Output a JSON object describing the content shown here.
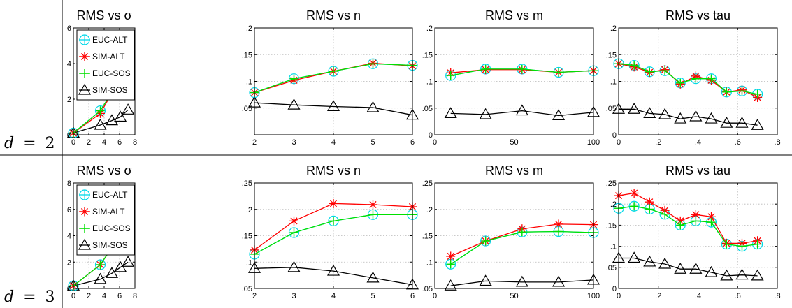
{
  "rows": [
    {
      "label_var": "d",
      "label_eq": "=",
      "label_val": "2"
    },
    {
      "label_var": "d",
      "label_eq": "=",
      "label_val": "3"
    }
  ],
  "colors": {
    "EUC-ALT": "#00d8e8",
    "SIM-ALT": "#ff0000",
    "EUC-SOS": "#00e000",
    "SIM-SOS": "#000000"
  },
  "chart_data": [
    {
      "type": "line",
      "title": "RMS vs σ",
      "row": 0,
      "col": 0,
      "legend": [
        "EUC-ALT",
        "SIM-ALT",
        "EUC-SOS",
        "SIM-SOS"
      ],
      "legend_position": "top-left",
      "grid": true,
      "xlim": [
        0,
        8
      ],
      "ylim": [
        0,
        6
      ],
      "xticks": [
        0,
        2,
        4,
        6,
        8
      ],
      "yticks": [
        0,
        2,
        4,
        6
      ],
      "x": [
        0,
        3.5,
        5,
        6.1,
        7.1
      ],
      "series": [
        {
          "name": "EUC-ALT",
          "marker": "circle-cross",
          "values": [
            0.1,
            1.35,
            2.4,
            3.45,
            4.7
          ]
        },
        {
          "name": "SIM-ALT",
          "marker": "asterisk",
          "values": [
            0.1,
            1.2,
            2.35,
            3.25,
            4.6
          ]
        },
        {
          "name": "EUC-SOS",
          "marker": "plus",
          "values": [
            0.1,
            1.35,
            2.4,
            3.45,
            4.7
          ]
        },
        {
          "name": "SIM-SOS",
          "marker": "triangle",
          "values": [
            0.1,
            0.55,
            0.8,
            1.0,
            1.4
          ]
        }
      ]
    },
    {
      "type": "line",
      "title": "RMS vs n",
      "row": 0,
      "col": 1,
      "grid": true,
      "xlim": [
        2,
        6
      ],
      "ylim": [
        0,
        0.2
      ],
      "xticks": [
        2,
        3,
        4,
        5,
        6
      ],
      "yticks": [
        0.05,
        0.1,
        0.15,
        0.2
      ],
      "x": [
        2,
        3,
        4,
        5,
        6
      ],
      "series": [
        {
          "name": "EUC-ALT",
          "marker": "circle-cross",
          "values": [
            0.079,
            0.105,
            0.119,
            0.133,
            0.13
          ]
        },
        {
          "name": "SIM-ALT",
          "marker": "asterisk",
          "values": [
            0.079,
            0.102,
            0.119,
            0.134,
            0.129
          ]
        },
        {
          "name": "EUC-SOS",
          "marker": "plus",
          "values": [
            0.079,
            0.105,
            0.119,
            0.133,
            0.13
          ]
        },
        {
          "name": "SIM-SOS",
          "marker": "triangle",
          "values": [
            0.06,
            0.056,
            0.053,
            0.051,
            0.037
          ]
        }
      ]
    },
    {
      "type": "line",
      "title": "RMS vs m",
      "row": 0,
      "col": 2,
      "grid": true,
      "xlim": [
        0,
        100
      ],
      "ylim": [
        0,
        0.2
      ],
      "xticks": [
        0,
        50,
        100
      ],
      "yticks": [
        0,
        0.05,
        0.1,
        0.15,
        0.2
      ],
      "x": [
        10,
        32,
        55,
        78,
        100
      ],
      "series": [
        {
          "name": "EUC-ALT",
          "marker": "circle-cross",
          "values": [
            0.111,
            0.123,
            0.123,
            0.117,
            0.12
          ]
        },
        {
          "name": "SIM-ALT",
          "marker": "asterisk",
          "values": [
            0.116,
            0.122,
            0.122,
            0.117,
            0.12
          ]
        },
        {
          "name": "EUC-SOS",
          "marker": "plus",
          "values": [
            0.111,
            0.123,
            0.123,
            0.117,
            0.12
          ]
        },
        {
          "name": "SIM-SOS",
          "marker": "triangle",
          "values": [
            0.04,
            0.038,
            0.045,
            0.036,
            0.042
          ]
        }
      ]
    },
    {
      "type": "line",
      "title": "RMS vs tau",
      "row": 0,
      "col": 3,
      "grid": true,
      "xlim": [
        0,
        0.8
      ],
      "ylim": [
        0,
        0.2
      ],
      "xticks": [
        0,
        0.2,
        0.4,
        0.6,
        0.8
      ],
      "yticks": [
        0,
        0.05,
        0.1,
        0.15,
        0.2
      ],
      "x": [
        0,
        0.078,
        0.156,
        0.233,
        0.311,
        0.389,
        0.467,
        0.544,
        0.622,
        0.7
      ],
      "series": [
        {
          "name": "EUC-ALT",
          "marker": "circle-cross",
          "values": [
            0.133,
            0.13,
            0.118,
            0.12,
            0.097,
            0.105,
            0.105,
            0.08,
            0.082,
            0.076
          ]
        },
        {
          "name": "SIM-ALT",
          "marker": "asterisk",
          "values": [
            0.133,
            0.127,
            0.117,
            0.122,
            0.095,
            0.11,
            0.102,
            0.08,
            0.084,
            0.07
          ]
        },
        {
          "name": "EUC-SOS",
          "marker": "plus",
          "values": [
            0.133,
            0.13,
            0.118,
            0.12,
            0.097,
            0.105,
            0.105,
            0.08,
            0.082,
            0.076
          ]
        },
        {
          "name": "SIM-SOS",
          "marker": "triangle",
          "values": [
            0.048,
            0.048,
            0.04,
            0.038,
            0.03,
            0.034,
            0.03,
            0.022,
            0.022,
            0.018
          ]
        }
      ]
    },
    {
      "type": "line",
      "title": "RMS vs σ",
      "row": 1,
      "col": 0,
      "legend": [
        "EUC-ALT",
        "SIM-ALT",
        "EUC-SOS",
        "SIM-SOS"
      ],
      "legend_position": "top-left",
      "grid": true,
      "xlim": [
        0,
        8
      ],
      "ylim": [
        0,
        8
      ],
      "xticks": [
        0,
        2,
        4,
        6,
        8
      ],
      "yticks": [
        0,
        2,
        4,
        6,
        8
      ],
      "x": [
        0,
        3.5,
        5,
        6.1,
        7.1
      ],
      "series": [
        {
          "name": "EUC-ALT",
          "marker": "circle-cross",
          "values": [
            0.2,
            1.8,
            3.1,
            4.75,
            6.35
          ]
        },
        {
          "name": "SIM-ALT",
          "marker": "asterisk",
          "values": [
            0.2,
            1.8,
            3.1,
            4.85,
            6.65
          ]
        },
        {
          "name": "EUC-SOS",
          "marker": "plus",
          "values": [
            0.2,
            1.8,
            3.1,
            4.75,
            6.35
          ]
        },
        {
          "name": "SIM-SOS",
          "marker": "triangle",
          "values": [
            0.2,
            0.7,
            1.15,
            1.6,
            2.0
          ]
        }
      ]
    },
    {
      "type": "line",
      "title": "RMS vs n",
      "row": 1,
      "col": 1,
      "grid": true,
      "xlim": [
        2,
        6
      ],
      "ylim": [
        0.05,
        0.25
      ],
      "xticks": [
        2,
        3,
        4,
        5,
        6
      ],
      "yticks": [
        0.05,
        0.1,
        0.15,
        0.2,
        0.25
      ],
      "x": [
        2,
        3,
        4,
        5,
        6
      ],
      "series": [
        {
          "name": "EUC-ALT",
          "marker": "circle-cross",
          "values": [
            0.115,
            0.156,
            0.178,
            0.19,
            0.19
          ]
        },
        {
          "name": "SIM-ALT",
          "marker": "asterisk",
          "values": [
            0.123,
            0.178,
            0.211,
            0.209,
            0.205
          ]
        },
        {
          "name": "EUC-SOS",
          "marker": "plus",
          "values": [
            0.115,
            0.156,
            0.178,
            0.19,
            0.19
          ]
        },
        {
          "name": "SIM-SOS",
          "marker": "triangle",
          "values": [
            0.088,
            0.09,
            0.083,
            0.07,
            0.057
          ]
        }
      ]
    },
    {
      "type": "line",
      "title": "RMS vs m",
      "row": 1,
      "col": 2,
      "grid": true,
      "xlim": [
        0,
        100
      ],
      "ylim": [
        0.05,
        0.25
      ],
      "xticks": [
        0,
        50,
        100
      ],
      "yticks": [
        0.05,
        0.1,
        0.15,
        0.2,
        0.25
      ],
      "x": [
        10,
        32,
        55,
        78,
        100
      ],
      "series": [
        {
          "name": "EUC-ALT",
          "marker": "circle-cross",
          "values": [
            0.096,
            0.14,
            0.157,
            0.158,
            0.156
          ]
        },
        {
          "name": "SIM-ALT",
          "marker": "asterisk",
          "values": [
            0.111,
            0.14,
            0.163,
            0.172,
            0.171
          ]
        },
        {
          "name": "EUC-SOS",
          "marker": "plus",
          "values": [
            0.096,
            0.14,
            0.157,
            0.158,
            0.156
          ]
        },
        {
          "name": "SIM-SOS",
          "marker": "triangle",
          "values": [
            0.055,
            0.064,
            0.062,
            0.062,
            0.066
          ]
        }
      ]
    },
    {
      "type": "line",
      "title": "RMS vs tau",
      "row": 1,
      "col": 3,
      "grid": true,
      "xlim": [
        0,
        0.8
      ],
      "ylim": [
        0,
        0.25
      ],
      "xticks": [
        0,
        0.2,
        0.4,
        0.6,
        0.8
      ],
      "yticks": [
        0,
        0.05,
        0.1,
        0.15,
        0.2,
        0.25
      ],
      "x": [
        0,
        0.078,
        0.156,
        0.233,
        0.311,
        0.389,
        0.467,
        0.544,
        0.622,
        0.7
      ],
      "series": [
        {
          "name": "EUC-ALT",
          "marker": "circle-cross",
          "values": [
            0.19,
            0.195,
            0.188,
            0.176,
            0.15,
            0.16,
            0.157,
            0.105,
            0.1,
            0.105
          ]
        },
        {
          "name": "SIM-ALT",
          "marker": "asterisk",
          "values": [
            0.22,
            0.226,
            0.205,
            0.185,
            0.16,
            0.175,
            0.17,
            0.107,
            0.107,
            0.113
          ]
        },
        {
          "name": "EUC-SOS",
          "marker": "plus",
          "values": [
            0.19,
            0.195,
            0.188,
            0.176,
            0.15,
            0.16,
            0.157,
            0.105,
            0.1,
            0.105
          ]
        },
        {
          "name": "SIM-SOS",
          "marker": "triangle",
          "values": [
            0.072,
            0.072,
            0.063,
            0.058,
            0.046,
            0.046,
            0.038,
            0.03,
            0.032,
            0.03
          ]
        }
      ]
    }
  ]
}
